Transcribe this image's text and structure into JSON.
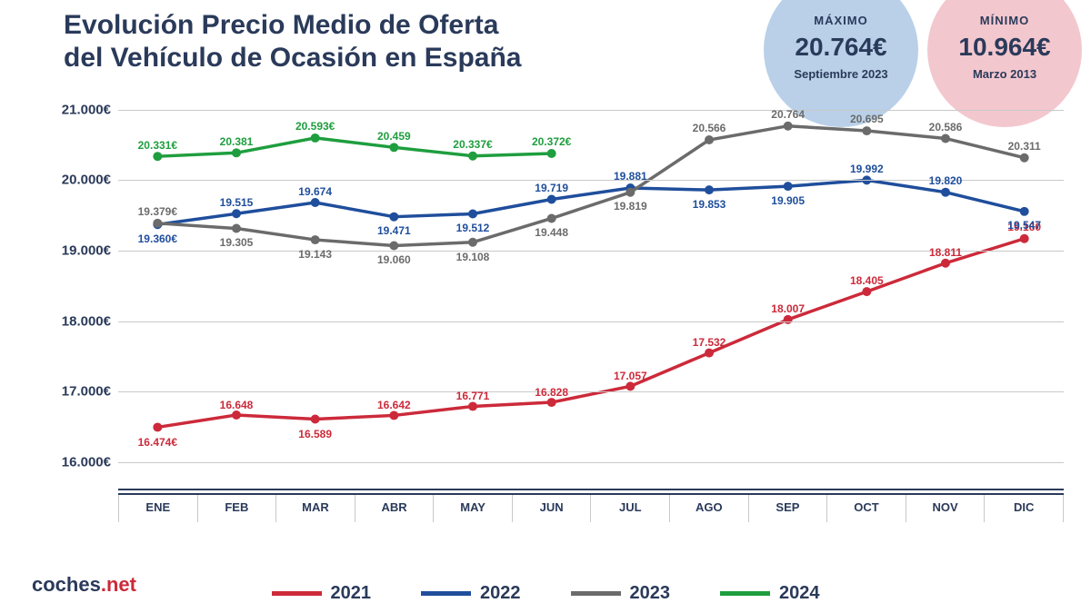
{
  "title_line1": "Evolución Precio Medio de Oferta",
  "title_line2": "del Vehículo de Ocasión en España",
  "badges": {
    "max": {
      "label": "MÁXIMO",
      "value": "20.764€",
      "sub": "Septiembre 2023",
      "bg": "#b9d0e8"
    },
    "min": {
      "label": "MÍNIMO",
      "value": "10.964€",
      "sub": "Marzo 2013",
      "bg": "#f3c7ce"
    }
  },
  "brand": {
    "text1": "coches",
    "text2": ".net",
    "color1": "#2a3a5a",
    "color2": "#cc2a3a"
  },
  "chart": {
    "type": "line",
    "months": [
      "ENE",
      "FEB",
      "MAR",
      "ABR",
      "MAY",
      "JUN",
      "JUL",
      "AGO",
      "SEP",
      "OCT",
      "NOV",
      "DIC"
    ],
    "ylim": [
      15600,
      21200
    ],
    "yticks": [
      16000,
      17000,
      18000,
      19000,
      20000,
      21000
    ],
    "yticks_labels": [
      "16.000€",
      "17.000€",
      "18.000€",
      "19.000€",
      "20.000€",
      "21.000€"
    ],
    "grid_color": "#c9c9c9",
    "axis_color": "#2a3a5a",
    "line_width": 3.5,
    "marker_radius": 5,
    "label_fontsize": 12,
    "series": [
      {
        "name": "2021",
        "color": "#cc2a3a",
        "values": [
          16474,
          16648,
          16589,
          16642,
          16771,
          16828,
          17057,
          17532,
          18007,
          18405,
          18811,
          19160
        ],
        "labels": [
          "16.474€",
          "16.648",
          "16.589",
          "16.642",
          "16.771",
          "16.828",
          "17.057",
          "17.532",
          "18.007",
          "18.405",
          "18.811",
          "19.160"
        ],
        "label_pos": [
          "below",
          "above",
          "below",
          "above",
          "above",
          "above",
          "above",
          "above",
          "above",
          "above",
          "above",
          "above"
        ]
      },
      {
        "name": "2022",
        "color": "#1f4e9c",
        "values": [
          19360,
          19515,
          19674,
          19471,
          19512,
          19719,
          19881,
          19853,
          19905,
          19992,
          19820,
          19547
        ],
        "labels": [
          "19.360€",
          "19.515",
          "19.674",
          "19.471",
          "19.512",
          "19.719",
          "19.881",
          "19.853",
          "19.905",
          "19.992",
          "19.820",
          "19.547"
        ],
        "label_pos": [
          "below",
          "above",
          "above",
          "below",
          "below",
          "above",
          "above",
          "below",
          "below",
          "above",
          "above",
          "below"
        ]
      },
      {
        "name": "2023",
        "color": "#6b6b6b",
        "values": [
          19379,
          19305,
          19143,
          19060,
          19108,
          19448,
          19819,
          20566,
          20764,
          20695,
          20586,
          20311
        ],
        "labels": [
          "19.379€",
          "19.305",
          "19.143",
          "19.060",
          "19.108",
          "19.448",
          "19.819",
          "20.566",
          "20.764",
          "20.695",
          "20.586",
          "20.311"
        ],
        "label_pos": [
          "above",
          "below",
          "below",
          "below",
          "below",
          "below",
          "below",
          "above",
          "above",
          "above",
          "above",
          "above"
        ]
      },
      {
        "name": "2024",
        "color": "#1e9e3e",
        "values": [
          20331,
          20381,
          20593,
          20459,
          20337,
          20372
        ],
        "labels": [
          "20.331€",
          "20.381",
          "20.593€",
          "20.459",
          "20.337€",
          "20.372€"
        ],
        "label_pos": [
          "above",
          "above",
          "above",
          "above",
          "above",
          "above"
        ]
      }
    ]
  }
}
